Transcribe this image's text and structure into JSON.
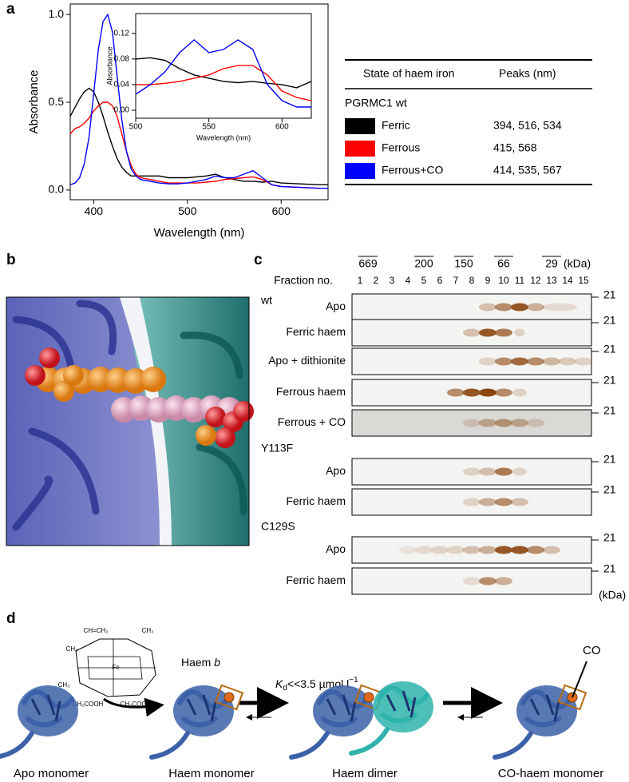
{
  "panel_a": {
    "label": "a",
    "table": {
      "headers": [
        "State of haem iron",
        "Peaks (nm)"
      ],
      "group": "PGRMC1 wt",
      "rows": [
        {
          "color": "#000000",
          "state": "Ferric",
          "peaks": "394, 516, 534"
        },
        {
          "color": "#ff0000",
          "state": "Ferrous",
          "peaks": "415, 568"
        },
        {
          "color": "#0000ff",
          "state": "Ferrous+CO",
          "peaks": "414, 535, 567"
        }
      ]
    }
  },
  "chart_data": [
    {
      "type": "line",
      "xlabel": "Wavelength (nm)",
      "ylabel": "Absorbance",
      "x": [
        375,
        380,
        385,
        390,
        395,
        400,
        405,
        410,
        415,
        420,
        425,
        430,
        435,
        440,
        445,
        450,
        460,
        470,
        480,
        490,
        500,
        510,
        520,
        530,
        540,
        550,
        560,
        570,
        580,
        590,
        600,
        620,
        640,
        650
      ],
      "series": [
        {
          "color": "#000000",
          "values": [
            0.42,
            0.47,
            0.52,
            0.56,
            0.58,
            0.56,
            0.5,
            0.42,
            0.33,
            0.25,
            0.18,
            0.13,
            0.1,
            0.08,
            0.08,
            0.08,
            0.08,
            0.08,
            0.07,
            0.07,
            0.07,
            0.075,
            0.08,
            0.09,
            0.07,
            0.06,
            0.05,
            0.05,
            0.045,
            0.05,
            0.04,
            0.035,
            0.03,
            0.03
          ]
        },
        {
          "color": "#ff0000",
          "values": [
            0.32,
            0.35,
            0.36,
            0.38,
            0.41,
            0.45,
            0.48,
            0.5,
            0.5,
            0.48,
            0.42,
            0.32,
            0.22,
            0.14,
            0.09,
            0.07,
            0.06,
            0.05,
            0.04,
            0.04,
            0.04,
            0.04,
            0.045,
            0.05,
            0.06,
            0.065,
            0.07,
            0.075,
            0.06,
            0.03,
            0.02,
            0.015,
            0.01,
            0.01
          ]
        },
        {
          "color": "#0000ff",
          "values": [
            0.03,
            0.04,
            0.07,
            0.15,
            0.3,
            0.55,
            0.8,
            0.96,
            1.0,
            0.9,
            0.65,
            0.4,
            0.22,
            0.12,
            0.08,
            0.06,
            0.05,
            0.04,
            0.035,
            0.035,
            0.04,
            0.05,
            0.06,
            0.08,
            0.07,
            0.07,
            0.09,
            0.11,
            0.07,
            0.03,
            0.02,
            0.015,
            0.01,
            0.01
          ]
        }
      ],
      "xlim": [
        375,
        650
      ],
      "ylim": [
        -0.055,
        1.06
      ],
      "xticks": [
        400,
        500,
        600
      ],
      "yticks": [
        {
          "value": 0,
          "label": "0.0"
        },
        {
          "value": 0.5,
          "label": "0.5"
        },
        {
          "value": 1,
          "label": "1.0"
        }
      ]
    },
    {
      "type": "line",
      "xlabel": "Wavelength (nm)",
      "ylabel": "Absorbance",
      "x": [
        500,
        510,
        520,
        530,
        540,
        550,
        560,
        570,
        580,
        590,
        600,
        610,
        620
      ],
      "series": [
        {
          "color": "#000000",
          "values": [
            0.08,
            0.082,
            0.078,
            0.065,
            0.055,
            0.05,
            0.045,
            0.043,
            0.045,
            0.042,
            0.04,
            0.035,
            0.045
          ]
        },
        {
          "color": "#ff0000",
          "values": [
            0.04,
            0.04,
            0.042,
            0.045,
            0.05,
            0.055,
            0.065,
            0.07,
            0.07,
            0.055,
            0.03,
            0.02,
            0.015
          ]
        },
        {
          "color": "#0000ff",
          "values": [
            0.025,
            0.04,
            0.06,
            0.09,
            0.11,
            0.09,
            0.095,
            0.11,
            0.095,
            0.04,
            0.015,
            0.005,
            0.005
          ]
        }
      ],
      "xlim": [
        500,
        620
      ],
      "ylim": [
        -0.0125,
        0.151
      ],
      "xticks": [
        500,
        550,
        600
      ],
      "yticks": [
        {
          "value": 0,
          "label": "0.00"
        },
        {
          "value": 0.04,
          "label": "0.04"
        },
        {
          "value": 0.08,
          "label": "0.08"
        },
        {
          "value": 0.12,
          "label": "0.12"
        }
      ]
    }
  ],
  "panel_b": {
    "label": "b"
  },
  "panel_c": {
    "label": "c",
    "size_markers": [
      "669",
      "200",
      "150",
      "66",
      "29"
    ],
    "unit": "(kDa)",
    "fraction_label": "Fraction no.",
    "fractions": [
      1,
      2,
      3,
      4,
      5,
      6,
      7,
      8,
      9,
      10,
      11,
      12,
      13,
      14,
      15
    ],
    "mw_marker": "21",
    "groups": [
      {
        "name": "wt",
        "rows": [
          "Apo",
          "Ferric haem",
          "Apo + dithionite",
          "Ferrous haem",
          "Ferrous + CO"
        ]
      },
      {
        "name": "Y113F",
        "rows": [
          "Apo",
          "Ferric haem"
        ]
      },
      {
        "name": "C129S",
        "rows": [
          "Apo",
          "Ferric haem"
        ]
      }
    ]
  },
  "panel_d": {
    "label": "d",
    "structure_labels": [
      "CH=CH₂",
      "CH₃",
      "CH₃",
      "CH₃",
      "Fe",
      "CH₂COOH",
      "CH₂COOH"
    ],
    "haem_label": {
      "text": "Haem ",
      "italic": "b"
    },
    "kd": {
      "symbol": "K",
      "subscript": "d",
      "relation": "<<3.5 µmol l",
      "superscript": "−1"
    },
    "co": "CO",
    "states": [
      "Apo monomer",
      "Haem monomer",
      "Haem dimer",
      "CO-haem monomer"
    ]
  }
}
